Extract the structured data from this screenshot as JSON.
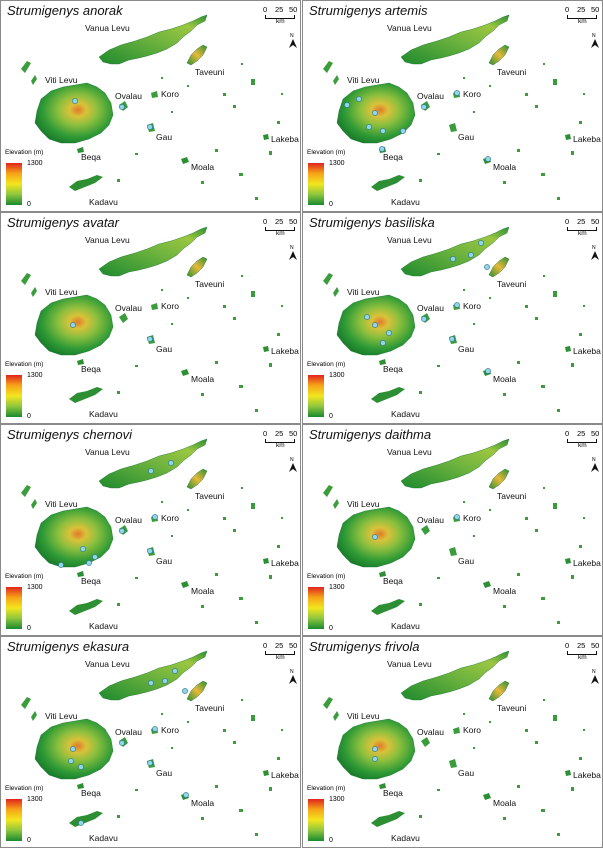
{
  "labels": {
    "vanua_levu": "Vanua Levu",
    "viti_levu": "Viti Levu",
    "taveuni": "Taveuni",
    "ovalau": "Ovalau",
    "koro": "Koro",
    "gau": "Gau",
    "lakeba": "Lakeba",
    "beqa": "Beqa",
    "moala": "Moala",
    "kadavu": "Kadavu"
  },
  "scale": {
    "ticks": [
      "0",
      "25",
      "50"
    ],
    "unit": "km"
  },
  "north_label": "N",
  "legend": {
    "title": "Elevation (m)",
    "max": "1300",
    "min": "0"
  },
  "colors": {
    "record_marker": "#8ed6ea",
    "marker_stroke": "#2a6f86",
    "lowland": "#1a8a2e",
    "highland": "#e0241c"
  },
  "panels": [
    {
      "species": "Strumigenys anorak",
      "records": [
        "Viti Levu interior",
        "Ovalau",
        "Gau"
      ]
    },
    {
      "species": "Strumigenys artemis",
      "records": [
        "Viti Levu west",
        "Viti Levu central",
        "Viti Levu south",
        "Ovalau",
        "Koro",
        "Beqa",
        "Moala"
      ]
    },
    {
      "species": "Strumigenys avatar",
      "records": [
        "Viti Levu central",
        "Gau"
      ]
    },
    {
      "species": "Strumigenys basiliska",
      "records": [
        "Vanua Levu",
        "Taveuni",
        "Viti Levu central",
        "Viti Levu south",
        "Ovalau",
        "Koro",
        "Gau",
        "Moala"
      ]
    },
    {
      "species": "Strumigenys chernovi",
      "records": [
        "Vanua Levu",
        "Viti Levu east",
        "Ovalau",
        "Koro",
        "Gau"
      ]
    },
    {
      "species": "Strumigenys daithma",
      "records": [
        "Viti Levu central",
        "Koro"
      ]
    },
    {
      "species": "Strumigenys ekasura",
      "records": [
        "Vanua Levu",
        "Taveuni",
        "Viti Levu central",
        "Viti Levu south",
        "Ovalau",
        "Koro",
        "Gau",
        "Moala",
        "Kadavu"
      ]
    },
    {
      "species": "Strumigenys frivola",
      "records": [
        "Viti Levu central"
      ]
    }
  ]
}
